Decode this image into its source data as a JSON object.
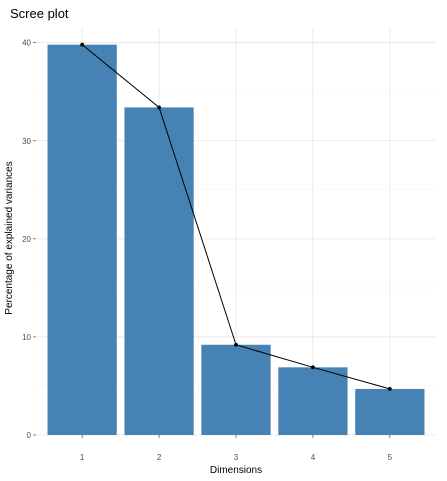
{
  "chart_data": {
    "type": "bar",
    "title": "Scree plot",
    "xlabel": "Dimensions",
    "ylabel": "Percentage of explained variances",
    "categories": [
      "1",
      "2",
      "3",
      "4",
      "5"
    ],
    "values": [
      39.8,
      33.4,
      9.2,
      6.9,
      4.7
    ],
    "ylim": [
      0,
      41.5
    ],
    "yticks": [
      0,
      10,
      20,
      30,
      40
    ],
    "grid": true,
    "line_overlay": true,
    "colors": {
      "bar": "#4682B4",
      "line": "#000000",
      "grid": "#e6e6e6"
    }
  }
}
